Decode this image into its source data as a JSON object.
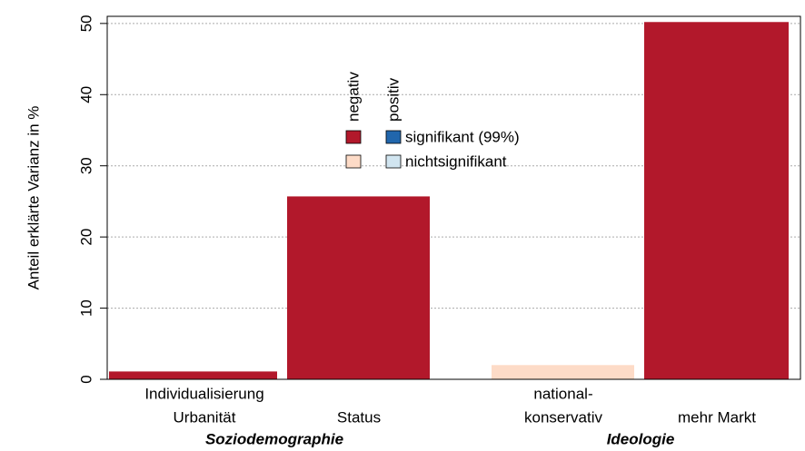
{
  "chart_data": {
    "type": "bar",
    "y_label": "Anteil erklärte Varianz in %",
    "categories": [
      [
        "Individualisierung",
        "Urbanität"
      ],
      [
        "Status"
      ],
      [
        "national-",
        "konservativ"
      ],
      [
        "mehr Markt"
      ]
    ],
    "values": [
      1.1,
      25.7,
      2.0,
      50.2
    ],
    "colors": [
      "#b2182b",
      "#b2182b",
      "#fddbc7",
      "#b2182b"
    ],
    "groups": [
      "Soziodemographie",
      "Ideologie"
    ],
    "ylim": [
      0,
      51
    ],
    "yticks": [
      0,
      10,
      20,
      30,
      40,
      50
    ],
    "grid": true,
    "legend": {
      "columns": [
        "negativ",
        "positiv"
      ],
      "rows": [
        {
          "label": "signifikant (99%)",
          "colors": [
            "#b2182b",
            "#2166ac"
          ]
        },
        {
          "label": "nichtsignifikant",
          "colors": [
            "#fddbc7",
            "#d1e5f0"
          ]
        }
      ]
    }
  }
}
